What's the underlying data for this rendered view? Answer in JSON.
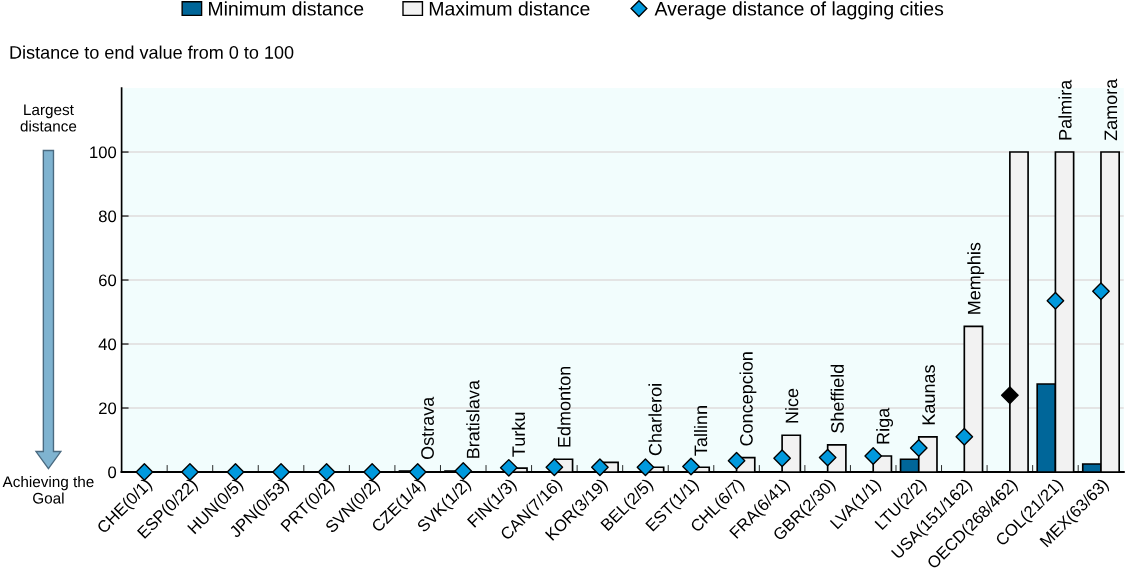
{
  "chart_data": {
    "type": "bar",
    "ylabel": "Distance to end value from 0 to 100",
    "categories": [
      "CHE(0/1)",
      "ESP(0/22)",
      "HUN(0/5)",
      "JPN(0/53)",
      "PRT(0/2)",
      "SVN(0/2)",
      "CZE(1/4)",
      "SVK(1/2)",
      "FIN(1/3)",
      "CAN(7/16)",
      "KOR(3/19)",
      "BEL(2/5)",
      "EST(1/1)",
      "CHL(6/7)",
      "FRA(6/41)",
      "GBR(2/30)",
      "LVA(1/1)",
      "LTU(2/2)",
      "USA(151/162)",
      "OECD(268/462)",
      "COL(21/21)",
      "MEX(63/63)"
    ],
    "series": [
      {
        "name": "Minimum distance",
        "color": "#006699",
        "values": [
          0,
          0,
          0,
          0,
          0,
          0,
          0.3,
          0.3,
          0,
          0,
          0,
          0,
          0,
          0,
          0,
          0,
          0,
          4,
          0,
          0,
          27.5,
          2.5
        ]
      },
      {
        "name": "Maximum distance",
        "color": "#f2f2f2",
        "values": [
          0,
          0,
          0,
          0,
          0,
          0,
          null,
          null,
          1.2,
          4,
          3,
          1.5,
          1.5,
          4.5,
          11.5,
          8.5,
          5,
          11,
          45.5,
          100,
          100,
          100
        ]
      },
      {
        "name": "Average distance of lagging cities",
        "type": "scatter",
        "marker": "diamond",
        "color": "#0099dd",
        "colors": [
          "#0099dd",
          "#0099dd",
          "#0099dd",
          "#0099dd",
          "#0099dd",
          "#0099dd",
          "#0099dd",
          "#0099dd",
          "#0099dd",
          "#0099dd",
          "#0099dd",
          "#0099dd",
          "#0099dd",
          "#0099dd",
          "#0099dd",
          "#0099dd",
          "#0099dd",
          "#0099dd",
          "#0099dd",
          "#000000",
          "#0099dd",
          "#0099dd"
        ],
        "values": [
          0,
          0,
          0,
          0,
          0,
          0,
          0,
          0.3,
          1.3,
          1.5,
          1.5,
          1.5,
          1.7,
          3.5,
          4.3,
          4.5,
          5,
          7.5,
          11,
          24,
          53.5,
          56.5
        ]
      }
    ],
    "ylim": [
      0,
      120
    ],
    "yticks": [
      0,
      20,
      40,
      60,
      80,
      100
    ],
    "grid": "y",
    "legend": "top",
    "annotations": [
      "Largest distance",
      "Achieving the Goal",
      {
        "text": "Ostrava",
        "x": "CZE(1/4)",
        "y": 0.3
      },
      {
        "text": "Bratislava",
        "x": "SVK(1/2)",
        "y": 0.5
      },
      {
        "text": "Turku",
        "x": "FIN(1/3)",
        "y": 1.2
      },
      {
        "text": "Edmonton",
        "x": "CAN(7/16)",
        "y": 4
      },
      {
        "text": "Charleroi",
        "x": "BEL(2/5)",
        "y": 1.5
      },
      {
        "text": "Tallinn",
        "x": "EST(1/1)",
        "y": 1.5
      },
      {
        "text": "Concepcion",
        "x": "CHL(6/7)",
        "y": 4.5
      },
      {
        "text": "Nice",
        "x": "FRA(6/41)",
        "y": 11.5
      },
      {
        "text": "Sheffield",
        "x": "GBR(2/30)",
        "y": 8.5
      },
      {
        "text": "Riga",
        "x": "LVA(1/1)",
        "y": 5
      },
      {
        "text": "Kaunas",
        "x": "LTU(2/2)",
        "y": 11
      },
      {
        "text": "Memphis",
        "x": "USA(151/162)",
        "y": 45.5
      },
      {
        "text": "Palmira",
        "x": "COL(21/21)",
        "y": 100
      },
      {
        "text": "Zamora",
        "x": "MEX(63/63)",
        "y": 100
      }
    ]
  }
}
